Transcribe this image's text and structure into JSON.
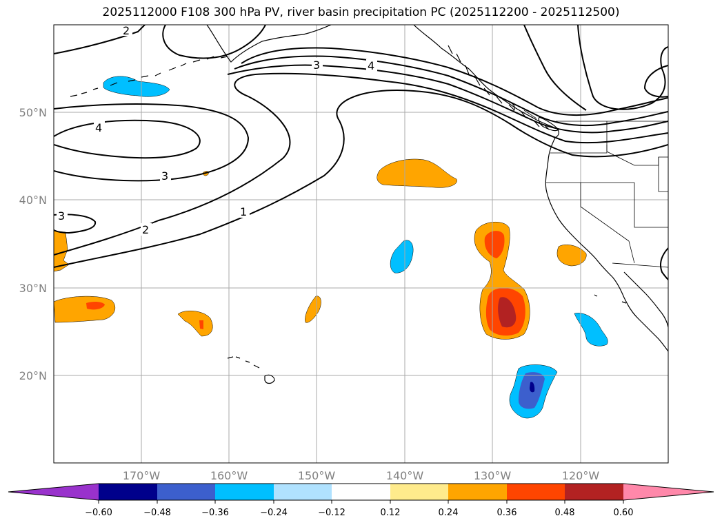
{
  "title": "2025112000 F108 300 hPa PV, river basin precipitation PC (2025112200 - 2025112500)",
  "latitude_labels": [
    "50°N",
    "40°N",
    "30°N",
    "20°N"
  ],
  "longitude_labels": [
    "170°W",
    "160°W",
    "150°W",
    "140°W",
    "130°W",
    "120°W"
  ],
  "contour_labels": [
    "2",
    "3",
    "4",
    "4",
    "3",
    "3",
    "2",
    "1"
  ],
  "colorbar": {
    "tick_labels": [
      "−0.60",
      "−0.48",
      "−0.36",
      "−0.24",
      "−0.12",
      "0.12",
      "0.24",
      "0.36",
      "0.48",
      "0.60"
    ],
    "colors": [
      "#9932cc",
      "#00008b",
      "#3c5fcd",
      "#00bfff",
      "#b0e2ff",
      "#ffffff",
      "#ffeb8c",
      "#ffa500",
      "#ff4500",
      "#b22222",
      "#ff88aa"
    ]
  },
  "palette": {
    "coast": "#000000",
    "grid": "#a9a9a9",
    "contour": "#000000"
  }
}
